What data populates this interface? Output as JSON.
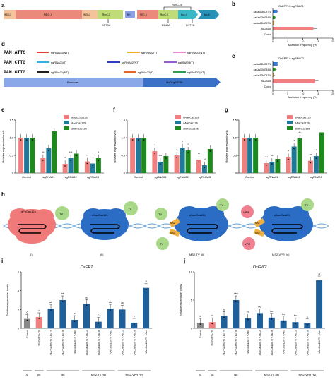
{
  "colors": {
    "pink": "#f08080",
    "teal": "#1f7a9a",
    "green": "#2e9a2e",
    "dgreen": "#1e7a1e",
    "navy": "#1f5f9a",
    "cyan": "#3a9ad9",
    "bluecloud": "#2b6cc4",
    "orange": "#f0b040",
    "lavender": "#b0a8e8",
    "leaf": "#a8d888",
    "vprpink": "#f08090"
  },
  "panels": {
    "a": "a",
    "b": "b",
    "c": "c",
    "d": "d",
    "e": "e",
    "f": "f",
    "g": "g",
    "h": "h",
    "i": "i",
    "j": "j"
  },
  "a": {
    "domains": [
      "WED-I",
      "REC-I",
      "WED-II",
      "RuvC-I",
      "BH",
      "REC-II",
      "RuvC-II",
      "Nuc-I",
      "Nuc-II",
      "RuvC-III",
      "WED-III"
    ],
    "domains_shown": [
      "WED-I",
      "REC-I",
      "WED-II",
      "RuvC-I",
      "BH",
      "REC-II",
      "RuvC-II",
      "Nuc-I",
      "Nuc-II",
      "RuvC-III"
    ],
    "mutations": [
      "D570A",
      "E848A",
      "D977A"
    ]
  },
  "b": {
    "title": "OsEPFL9-sgRNA01",
    "xlabel": "Mutation frequency (%)",
    "categories": [
      "AsCas12b-D977A",
      "AsCas12b-E848A",
      "AsCas12b-D570A",
      "AsCas12b",
      "Control"
    ],
    "values": [
      1.5,
      0.8,
      0.4,
      13.5,
      0
    ],
    "ticks": [
      "0",
      "5",
      "10",
      "15",
      "20"
    ],
    "xlim": [
      0,
      20
    ]
  },
  "c": {
    "title": "OsEPFL9-sgRNA02",
    "xlabel": "Mutation frequency (%)",
    "categories": [
      "AsCas12b-D977A",
      "AsCas12b-E848A",
      "AsCas12b-D570A",
      "AsCas12b",
      "Control"
    ],
    "values": [
      1.6,
      0.9,
      0.3,
      14,
      0
    ],
    "ticks": [
      "0",
      "5",
      "10",
      "15",
      "20"
    ],
    "xlim": [
      0,
      20
    ]
  },
  "d": {
    "pam": [
      "PAM:ATTC",
      "PAM:CTTG",
      "PAM:GTTG"
    ],
    "guides_row1": [
      "sgRNA01(NT)",
      "sgRNA02(T)",
      "sgRNA03(NT)"
    ],
    "guides_row2": [
      "sgRNA01(T)",
      "sgRNA02(NT)",
      "sgRNA03(T)"
    ],
    "guides_row3": [
      "sgRNA01(NT)",
      "sgRNA02(T)",
      "sgRNA03(NT)"
    ],
    "promoter": "Promoter",
    "gene": "OsDsg28780"
  },
  "chart_data": [
    {
      "panel": "e",
      "type": "bar",
      "categories": [
        "Control",
        "sgRNA01",
        "sgRNA02",
        "sgRNA03"
      ],
      "ylabel": "Relative expression levels",
      "ylim": [
        0,
        1.5
      ],
      "yticks": [
        "0",
        "0.5",
        "1.0",
        "1.5"
      ],
      "series": [
        {
          "name": "dAacCas12b",
          "values": [
            1.0,
            0.42,
            0.26,
            0.33
          ]
        },
        {
          "name": "dAaCas12b",
          "values": [
            1.0,
            0.7,
            0.42,
            0.27
          ]
        },
        {
          "name": "dBthCas12b",
          "values": [
            1.0,
            1.18,
            0.55,
            0.42
          ]
        }
      ],
      "annotations": [
        [
          "**"
        ],
        [
          "*",
          "***"
        ],
        [
          "**",
          "**",
          "*"
        ],
        [
          "**",
          "**",
          "*"
        ]
      ]
    },
    {
      "panel": "f",
      "type": "bar",
      "categories": [
        "Control",
        "sgRNA01",
        "sgRNA02",
        "sgRNA03"
      ],
      "ylabel": "Relative expression levels",
      "ylim": [
        0,
        1.5
      ],
      "yticks": [
        "0",
        "0.5",
        "1.0",
        "1.5"
      ],
      "series": [
        {
          "name": "dAacCas12b",
          "values": [
            1.0,
            0.62,
            0.5,
            0.38
          ]
        },
        {
          "name": "dAaCas12b",
          "values": [
            1.0,
            0.32,
            0.72,
            0.22
          ]
        },
        {
          "name": "dBthCas12b",
          "values": [
            1.0,
            0.48,
            0.64,
            0.68
          ]
        }
      ],
      "annotations": [
        [
          "*",
          "***"
        ],
        [
          "*",
          "*",
          "*"
        ],
        [
          "**",
          "**"
        ]
      ]
    },
    {
      "panel": "g",
      "type": "bar",
      "categories": [
        "Control",
        "sgRNA01",
        "sgRNA02",
        "sgRNA03"
      ],
      "ylabel": "Relative expression levels",
      "ylim": [
        0,
        1.5
      ],
      "yticks": [
        "0",
        "0.5",
        "1.0",
        "1.5"
      ],
      "series": [
        {
          "name": "dAacCas12b",
          "values": [
            1.0,
            0.28,
            0.45,
            0.35
          ]
        },
        {
          "name": "dAaCas12b",
          "values": [
            1.0,
            0.32,
            0.75,
            0.48
          ]
        },
        {
          "name": "dBthCas12b",
          "values": [
            1.0,
            0.4,
            0.98,
            1.15
          ]
        }
      ],
      "annotations": [
        [
          "***",
          "**"
        ],
        [
          "*",
          "*",
          "**"
        ],
        [
          "**",
          "*"
        ]
      ]
    },
    {
      "panel": "i",
      "type": "bar",
      "gene": "OsER1",
      "ylabel": "Relative expression levels",
      "ylim": [
        0,
        6
      ],
      "yticks": [
        "0",
        "2",
        "4",
        "6"
      ],
      "categories": [
        "Control",
        "dFnCas12a-TV",
        "dAacCas12b-TV + Aa1.2",
        "dAacCas12b-TV + Aa3.8",
        "dAacCas12b-TV + Aac",
        "dAacCas12b-TV + Aa1.2",
        "dAacCas12b-TV + Aa3.8",
        "dAacCas12b-TV + Aac",
        "dAacCas12b-TV + Aa1.2",
        "dAacCas12b-TV + Aa3.8",
        "dAacCas12b-TV + Aac"
      ],
      "values": [
        1.0,
        1.2,
        2.1,
        3.0,
        0.9,
        2.6,
        0.7,
        2.1,
        2.0,
        0.6,
        4.3
      ],
      "letters": [
        "c",
        "c",
        "ab",
        "ab",
        "c",
        "ab",
        "c",
        "ab",
        "ab",
        "c",
        "a"
      ],
      "colors": [
        "#888888",
        "#f08080",
        "#1f5f9a",
        "#1f5f9a",
        "#1f5f9a",
        "#1f5f9a",
        "#1f5f9a",
        "#1f5f9a",
        "#1f5f9a",
        "#1f5f9a",
        "#1f5f9a"
      ],
      "groups": [
        "(i)",
        "(ii)",
        "(iii)",
        "MS2-TV (iii)",
        "MS2-VPR (iv)"
      ]
    },
    {
      "panel": "j",
      "type": "bar",
      "gene": "OsGW7",
      "ylabel": "Relative expression levels",
      "ylim": [
        0,
        10
      ],
      "yticks": [
        "0",
        "5",
        "10"
      ],
      "categories": [
        "Control",
        "dFnCas12a-TV",
        "dAacCas12b-TV + Aa1.2",
        "dAacCas12b-TV + Aa3.8",
        "dAacCas12b-TV + Aac",
        "dAacCas12b-TV + Aa1.2",
        "dAacCas12b-TV + Aa3.8",
        "dAacCas12b-TV + Aac",
        "dAacCas12b-TV + Aa1.2",
        "dAacCas12b-TV + Aa3.8",
        "dAacCas12b-TV + Aac"
      ],
      "values": [
        1.0,
        1.1,
        2.2,
        5.0,
        1.8,
        2.7,
        1.9,
        1.4,
        1.1,
        0.9,
        8.5
      ],
      "letters": [
        "c",
        "c",
        "bc",
        "abc",
        "bc",
        "bc",
        "bc",
        "bc",
        "bc",
        "c",
        "a"
      ],
      "colors": [
        "#888888",
        "#f08080",
        "#1f5f9a",
        "#1f5f9a",
        "#1f5f9a",
        "#1f5f9a",
        "#1f5f9a",
        "#1f5f9a",
        "#1f5f9a",
        "#1f5f9a",
        "#1f5f9a"
      ],
      "groups": [
        "(i)",
        "(ii)",
        "(iii)",
        "MS2-TV (iii)",
        "MS2-VPR (iv)"
      ]
    }
  ],
  "h": {
    "labels": [
      "dFnCas12a",
      "dAacCas12b",
      "dAacCas12b",
      "dAacCas12b"
    ],
    "tv": "TV",
    "ms2": "MS2",
    "vpr": "VPR",
    "captions": [
      "(i)",
      "(ii)",
      "MS2-TV (iii)",
      "MS2-VPR (iv)"
    ]
  }
}
